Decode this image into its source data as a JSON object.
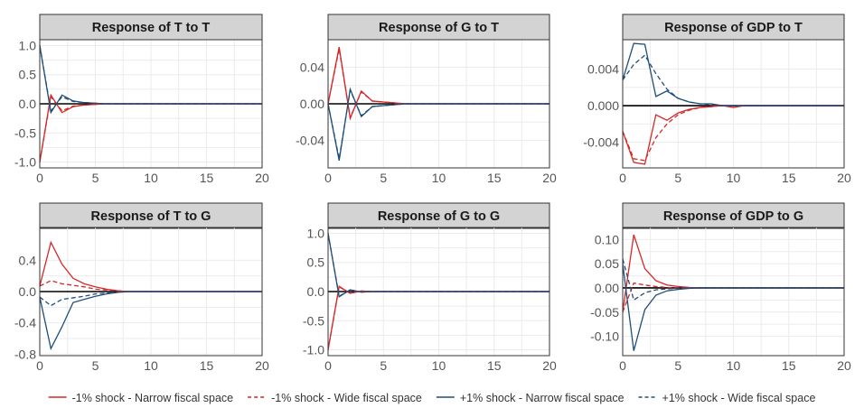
{
  "colors": {
    "narrow_neg": "#d62728",
    "wide_neg": "#d62728",
    "narrow_pos": "#1f4e79",
    "wide_pos": "#1f4e79"
  },
  "legend": [
    {
      "label": "-1% shock - Narrow fiscal space",
      "color": "#d62728",
      "dash": "solid"
    },
    {
      "label": "-1% shock - Wide fiscal space",
      "color": "#d62728",
      "dash": "dashed"
    },
    {
      "label": "+1% shock - Narrow fiscal space",
      "color": "#1f4e79",
      "dash": "solid"
    },
    {
      "label": "+1% shock - Wide fiscal space",
      "color": "#1f4e79",
      "dash": "dashed"
    }
  ],
  "chart_data": [
    {
      "type": "line",
      "title": "Response of T to T",
      "x": [
        0,
        1,
        2,
        3,
        4,
        5,
        6,
        7,
        8,
        9,
        10,
        11,
        12,
        13,
        14,
        15,
        16,
        17,
        18,
        19,
        20
      ],
      "xlim": [
        0,
        20
      ],
      "xticks": [
        0,
        5,
        10,
        15,
        20
      ],
      "ylim": [
        -1.1,
        1.1
      ],
      "yticks": [
        -1.0,
        -0.5,
        0.0,
        0.5,
        1.0
      ],
      "ytick_labels": [
        "-1.0",
        "-0.5",
        "0.0",
        "0.5",
        "1.0"
      ],
      "grid": true,
      "series": [
        {
          "name": "-1% shock - Narrow fiscal space",
          "style": "narrow_neg",
          "values": [
            -1.0,
            0.15,
            -0.15,
            -0.05,
            -0.02,
            -0.01,
            0,
            0,
            0,
            0,
            0,
            0,
            0,
            0,
            0,
            0,
            0,
            0,
            0,
            0,
            0
          ]
        },
        {
          "name": "-1% shock - Wide fiscal space",
          "style": "wide_neg",
          "values": [
            -1.0,
            0.12,
            -0.12,
            -0.04,
            -0.02,
            -0.01,
            0,
            0,
            0,
            0,
            0,
            0,
            0,
            0,
            0,
            0,
            0,
            0,
            0,
            0,
            0
          ]
        },
        {
          "name": "+1% shock - Narrow fiscal space",
          "style": "narrow_pos",
          "values": [
            1.0,
            -0.15,
            0.15,
            0.05,
            0.02,
            0.01,
            0,
            0,
            0,
            0,
            0,
            0,
            0,
            0,
            0,
            0,
            0,
            0,
            0,
            0,
            0
          ]
        },
        {
          "name": "+1% shock - Wide fiscal space",
          "style": "wide_pos",
          "values": [
            1.0,
            -0.12,
            0.12,
            0.04,
            0.02,
            0.01,
            0,
            0,
            0,
            0,
            0,
            0,
            0,
            0,
            0,
            0,
            0,
            0,
            0,
            0,
            0
          ]
        }
      ]
    },
    {
      "type": "line",
      "title": "Response of G to T",
      "x": [
        0,
        1,
        2,
        3,
        4,
        5,
        6,
        7,
        8,
        9,
        10,
        11,
        12,
        13,
        14,
        15,
        16,
        17,
        18,
        19,
        20
      ],
      "xlim": [
        0,
        20
      ],
      "xticks": [
        0,
        5,
        10,
        15,
        20
      ],
      "ylim": [
        -0.07,
        0.07
      ],
      "yticks": [
        -0.04,
        0.0,
        0.04
      ],
      "ytick_labels": [
        "-0.04",
        "0.00",
        "0.04"
      ],
      "grid": true,
      "series": [
        {
          "name": "-1% shock - Narrow fiscal space",
          "style": "narrow_neg",
          "values": [
            0,
            0.062,
            -0.016,
            0.014,
            0.003,
            0.002,
            0.001,
            0,
            0,
            0,
            0,
            0,
            0,
            0,
            0,
            0,
            0,
            0,
            0,
            0,
            0
          ]
        },
        {
          "name": "-1% shock - Wide fiscal space",
          "style": "wide_neg",
          "values": [
            0,
            0.06,
            -0.015,
            0.013,
            0.003,
            0.002,
            0.001,
            0,
            0,
            0,
            0,
            0,
            0,
            0,
            0,
            0,
            0,
            0,
            0,
            0,
            0
          ]
        },
        {
          "name": "+1% shock - Narrow fiscal space",
          "style": "narrow_pos",
          "values": [
            0,
            -0.062,
            0.016,
            -0.014,
            -0.003,
            -0.002,
            -0.001,
            0,
            0,
            0,
            0,
            0,
            0,
            0,
            0,
            0,
            0,
            0,
            0,
            0,
            0
          ]
        },
        {
          "name": "+1% shock - Wide fiscal space",
          "style": "wide_pos",
          "values": [
            0,
            -0.06,
            0.015,
            -0.013,
            -0.003,
            -0.002,
            -0.001,
            0,
            0,
            0,
            0,
            0,
            0,
            0,
            0,
            0,
            0,
            0,
            0,
            0,
            0
          ]
        }
      ]
    },
    {
      "type": "line",
      "title": "Response of GDP to T",
      "x": [
        0,
        1,
        2,
        3,
        4,
        5,
        6,
        7,
        8,
        9,
        10,
        11,
        12,
        13,
        14,
        15,
        16,
        17,
        18,
        19,
        20
      ],
      "xlim": [
        0,
        20
      ],
      "xticks": [
        0,
        5,
        10,
        15,
        20
      ],
      "ylim": [
        -0.0068,
        0.0072
      ],
      "yticks": [
        -0.004,
        0.0,
        0.004
      ],
      "ytick_labels": [
        "-0.004",
        "0.000",
        "0.004"
      ],
      "grid": true,
      "series": [
        {
          "name": "-1% shock - Narrow fiscal space",
          "style": "narrow_neg",
          "values": [
            -0.0028,
            -0.0062,
            -0.0064,
            -0.001,
            -0.0016,
            -0.0008,
            -0.0004,
            -0.0002,
            -0.0001,
            0,
            -0.0002,
            0,
            0,
            0,
            0,
            0,
            0,
            0,
            0,
            0,
            0
          ]
        },
        {
          "name": "-1% shock - Wide fiscal space",
          "style": "wide_neg",
          "values": [
            -0.0028,
            -0.0058,
            -0.006,
            -0.0035,
            -0.002,
            -0.001,
            -0.0005,
            -0.0002,
            -0.0001,
            0,
            0,
            0,
            0,
            0,
            0,
            0,
            0,
            0,
            0,
            0,
            0
          ]
        },
        {
          "name": "+1% shock - Narrow fiscal space",
          "style": "narrow_pos",
          "values": [
            0.0028,
            0.0068,
            0.0067,
            0.001,
            0.0016,
            0.0008,
            0.0004,
            0.0002,
            0.0002,
            0,
            0,
            0,
            0,
            0,
            0,
            0,
            0,
            0,
            0,
            0,
            0
          ]
        },
        {
          "name": "+1% shock - Wide fiscal space",
          "style": "wide_pos",
          "values": [
            0.0028,
            0.0045,
            0.0055,
            0.0035,
            0.0018,
            0.0008,
            0.0004,
            0.0002,
            0.0001,
            0,
            0,
            0,
            0,
            0,
            0,
            0,
            0,
            0,
            0,
            0,
            0
          ]
        }
      ]
    },
    {
      "type": "line",
      "title": "Response of T to G",
      "x": [
        0,
        1,
        2,
        3,
        4,
        5,
        6,
        7,
        8,
        9,
        10,
        11,
        12,
        13,
        14,
        15,
        16,
        17,
        18,
        19,
        20
      ],
      "xlim": [
        0,
        20
      ],
      "xticks": [
        0,
        5,
        10,
        15,
        20
      ],
      "ylim": [
        -0.82,
        0.82
      ],
      "yticks": [
        -0.8,
        -0.4,
        0.0,
        0.4
      ],
      "ytick_labels": [
        "-0.8",
        "-0.4",
        "0.0",
        "0.4"
      ],
      "grid": true,
      "series": [
        {
          "name": "-1% shock - Narrow fiscal space",
          "style": "narrow_neg",
          "values": [
            0.07,
            0.63,
            0.35,
            0.17,
            0.1,
            0.06,
            0.03,
            0.01,
            0,
            0,
            0,
            0,
            0,
            0,
            0,
            0,
            0,
            0,
            0,
            0,
            0
          ]
        },
        {
          "name": "-1% shock - Wide fiscal space",
          "style": "wide_neg",
          "values": [
            0.07,
            0.14,
            0.1,
            0.08,
            0.06,
            0.03,
            0.02,
            0.01,
            0,
            0,
            0,
            0,
            0,
            0,
            0,
            0,
            0,
            0,
            0,
            0,
            0
          ]
        },
        {
          "name": "+1% shock - Narrow fiscal space",
          "style": "narrow_pos",
          "values": [
            -0.07,
            -0.73,
            -0.45,
            -0.14,
            -0.1,
            -0.06,
            -0.03,
            -0.01,
            0,
            0,
            0,
            0,
            0,
            0,
            0,
            0,
            0,
            0,
            0,
            0,
            0
          ]
        },
        {
          "name": "+1% shock - Wide fiscal space",
          "style": "wide_pos",
          "values": [
            -0.07,
            -0.18,
            -0.1,
            -0.08,
            -0.06,
            -0.03,
            -0.02,
            -0.01,
            0,
            0,
            0,
            0,
            0,
            0,
            0,
            0,
            0,
            0,
            0,
            0,
            0
          ]
        }
      ]
    },
    {
      "type": "line",
      "title": "Response of G to G",
      "x": [
        0,
        1,
        2,
        3,
        4,
        5,
        6,
        7,
        8,
        9,
        10,
        11,
        12,
        13,
        14,
        15,
        16,
        17,
        18,
        19,
        20
      ],
      "xlim": [
        0,
        20
      ],
      "xticks": [
        0,
        5,
        10,
        15,
        20
      ],
      "ylim": [
        -1.1,
        1.1
      ],
      "yticks": [
        -1.0,
        -0.5,
        0.0,
        0.5,
        1.0
      ],
      "ytick_labels": [
        "-1.0",
        "-0.5",
        "0.0",
        "0.5",
        "1.0"
      ],
      "grid": true,
      "series": [
        {
          "name": "-1% shock - Narrow fiscal space",
          "style": "narrow_neg",
          "values": [
            -1.0,
            0.09,
            -0.03,
            0.01,
            0,
            0,
            0,
            0,
            0,
            0,
            0,
            0,
            0,
            0,
            0,
            0,
            0,
            0,
            0,
            0,
            0
          ]
        },
        {
          "name": "-1% shock - Wide fiscal space",
          "style": "wide_neg",
          "values": [
            -1.0,
            0.08,
            -0.03,
            0.01,
            0,
            0,
            0,
            0,
            0,
            0,
            0,
            0,
            0,
            0,
            0,
            0,
            0,
            0,
            0,
            0,
            0
          ]
        },
        {
          "name": "+1% shock - Narrow fiscal space",
          "style": "narrow_pos",
          "values": [
            1.0,
            -0.09,
            0.03,
            -0.01,
            0,
            0,
            0,
            0,
            0,
            0,
            0,
            0,
            0,
            0,
            0,
            0,
            0,
            0,
            0,
            0,
            0
          ]
        },
        {
          "name": "+1% shock - Wide fiscal space",
          "style": "wide_pos",
          "values": [
            1.0,
            -0.08,
            0.03,
            -0.01,
            0,
            0,
            0,
            0,
            0,
            0,
            0,
            0,
            0,
            0,
            0,
            0,
            0,
            0,
            0,
            0,
            0
          ]
        }
      ]
    },
    {
      "type": "line",
      "title": "Response of GDP to G",
      "x": [
        0,
        1,
        2,
        3,
        4,
        5,
        6,
        7,
        8,
        9,
        10,
        11,
        12,
        13,
        14,
        15,
        16,
        17,
        18,
        19,
        20
      ],
      "xlim": [
        0,
        20
      ],
      "xticks": [
        0,
        5,
        10,
        15,
        20
      ],
      "ylim": [
        -0.14,
        0.125
      ],
      "yticks": [
        -0.1,
        -0.05,
        0.0,
        0.05,
        0.1
      ],
      "ytick_labels": [
        "-0.10",
        "-0.05",
        "0.00",
        "0.05",
        "0.10"
      ],
      "grid": true,
      "series": [
        {
          "name": "-1% shock - Narrow fiscal space",
          "style": "narrow_neg",
          "values": [
            -0.05,
            0.11,
            0.04,
            0.015,
            0.006,
            0.003,
            0.001,
            0,
            0,
            0,
            0,
            0,
            0,
            0,
            0,
            0,
            0,
            0,
            0,
            0,
            0
          ]
        },
        {
          "name": "-1% shock - Wide fiscal space",
          "style": "wide_neg",
          "values": [
            -0.05,
            0.01,
            0.006,
            0.003,
            0.001,
            0,
            0,
            0,
            0,
            0,
            0,
            0,
            0,
            0,
            0,
            0,
            0,
            0,
            0,
            0,
            0
          ]
        },
        {
          "name": "+1% shock - Narrow fiscal space",
          "style": "narrow_pos",
          "values": [
            0.05,
            -0.13,
            -0.045,
            -0.015,
            -0.006,
            -0.003,
            -0.001,
            0,
            0,
            0,
            0,
            0,
            0,
            0,
            0,
            0,
            0,
            0,
            0,
            0,
            0
          ]
        },
        {
          "name": "+1% shock - Wide fiscal space",
          "style": "wide_pos",
          "values": [
            0.06,
            -0.025,
            -0.01,
            -0.004,
            -0.002,
            -0.001,
            0,
            0,
            0,
            0,
            0,
            0,
            0,
            0,
            0,
            0,
            0,
            0,
            0,
            0,
            0
          ]
        }
      ]
    }
  ]
}
